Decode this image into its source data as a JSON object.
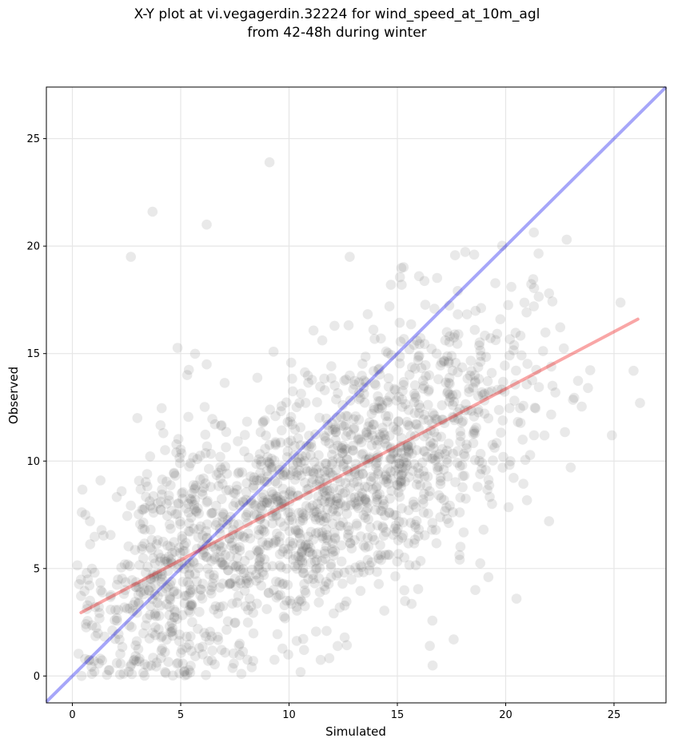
{
  "chart_data": {
    "type": "scatter",
    "title_line1": "X-Y plot at vi.vegagerdin.32224 for wind_speed_at_10m_agl",
    "title_line2": "from 42-48h during winter",
    "xlabel": "Simulated",
    "ylabel": "Observed",
    "xlim": [
      -1.2,
      27.4
    ],
    "ylim": [
      -1.25,
      27.4
    ],
    "xticks": [
      0,
      5,
      10,
      15,
      20,
      25
    ],
    "yticks": [
      0,
      5,
      10,
      15,
      20,
      25
    ],
    "grid": true,
    "point_color": "#555555",
    "identity_line": {
      "x": [
        -1.2,
        27.4
      ],
      "y": [
        -1.2,
        27.4
      ],
      "color": "#0000ee"
    },
    "regression_line": {
      "x": [
        0.4,
        26.1
      ],
      "y": [
        2.95,
        16.6
      ],
      "color": "#ee0000"
    },
    "outliers": [
      {
        "x": 9.1,
        "y": 23.9
      },
      {
        "x": 3.7,
        "y": 21.6
      },
      {
        "x": 6.2,
        "y": 21.0
      },
      {
        "x": 2.7,
        "y": 19.5
      },
      {
        "x": 12.8,
        "y": 19.5
      },
      {
        "x": 16.0,
        "y": 18.6
      },
      {
        "x": 15.2,
        "y": 18.2
      },
      {
        "x": 14.7,
        "y": 18.2
      },
      {
        "x": 22.0,
        "y": 17.8
      },
      {
        "x": 21.3,
        "y": 17.2
      },
      {
        "x": 26.2,
        "y": 12.7
      },
      {
        "x": 25.9,
        "y": 14.2
      },
      {
        "x": 24.9,
        "y": 11.2
      },
      {
        "x": 20.5,
        "y": 3.6
      },
      {
        "x": 17.6,
        "y": 1.7
      },
      {
        "x": 16.5,
        "y": 1.4
      },
      {
        "x": 3.0,
        "y": 12.0
      },
      {
        "x": 4.2,
        "y": 11.3
      },
      {
        "x": 5.3,
        "y": 14.0
      },
      {
        "x": 6.2,
        "y": 14.5
      },
      {
        "x": 1.3,
        "y": 9.1
      },
      {
        "x": 0.6,
        "y": 7.5
      },
      {
        "x": 0.9,
        "y": 0.1
      },
      {
        "x": 2.6,
        "y": 0.2
      },
      {
        "x": 7.8,
        "y": 0.1
      },
      {
        "x": 23.8,
        "y": 13.4
      },
      {
        "x": 23.0,
        "y": 9.7
      },
      {
        "x": 22.0,
        "y": 7.2
      },
      {
        "x": 19.2,
        "y": 4.6
      },
      {
        "x": 18.6,
        "y": 4.0
      }
    ]
  }
}
